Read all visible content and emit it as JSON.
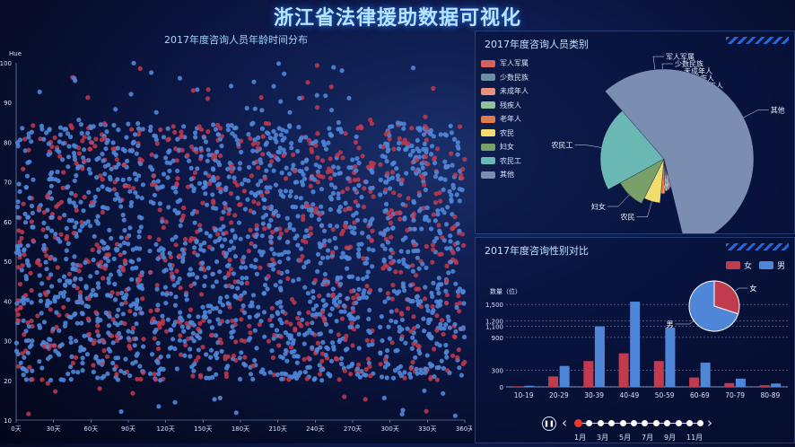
{
  "title": "浙江省法律援助数据可视化",
  "colors": {
    "female": "#c23a4d",
    "male": "#4f86d8"
  },
  "scatter": {
    "title": "2017年度咨询人员年龄时间分布",
    "yname": "Hue",
    "yticks": [
      "10",
      "20",
      "30",
      "40",
      "50",
      "60",
      "70",
      "80",
      "90",
      "100"
    ],
    "xticks": [
      "0天",
      "30天",
      "60天",
      "90天",
      "120天",
      "150天",
      "180天",
      "210天",
      "240天",
      "270天",
      "300天",
      "330天",
      "360天"
    ]
  },
  "categories": {
    "title": "2017年度咨询人员类别",
    "items": [
      {
        "label": "军人军属",
        "color": "#d95f5f"
      },
      {
        "label": "少数民族",
        "color": "#6b8fa8"
      },
      {
        "label": "未成年人",
        "color": "#e8927c"
      },
      {
        "label": "残疾人",
        "color": "#8fc49b"
      },
      {
        "label": "老年人",
        "color": "#e07b4a"
      },
      {
        "label": "农民",
        "color": "#f1dd6d"
      },
      {
        "label": "妇女",
        "color": "#7aa06a"
      },
      {
        "label": "农民工",
        "color": "#6ab8b4"
      },
      {
        "label": "其他",
        "color": "#7b8db0"
      }
    ],
    "chart_data": {
      "type": "pie",
      "labels": [
        "军人军属",
        "少数民族",
        "未成年人",
        "残疾人",
        "老年人",
        "农民",
        "妇女",
        "农民工",
        "其他"
      ],
      "values": [
        0.4,
        0.6,
        0.8,
        1,
        1.6,
        5,
        8,
        18,
        48
      ]
    }
  },
  "gender": {
    "title": "2017年度咨询性别对比",
    "legend": [
      "女",
      "男"
    ],
    "yname": "数量（位）",
    "yticks": [
      "0",
      "300",
      "900",
      "1,100",
      "1,200",
      "1,500"
    ],
    "pie_labels": {
      "female": "女",
      "male": "男"
    },
    "chart_data": {
      "type": "bar",
      "categories": [
        "10-19",
        "20-29",
        "30-39",
        "40-49",
        "50-59",
        "60-69",
        "70-79",
        "80-89"
      ],
      "series": [
        {
          "name": "女",
          "values": [
            10,
            190,
            470,
            610,
            470,
            170,
            70,
            30
          ]
        },
        {
          "name": "男",
          "values": [
            20,
            380,
            1100,
            1550,
            1080,
            440,
            150,
            60
          ]
        }
      ],
      "ylim": [
        0,
        1600
      ]
    },
    "pie_data": {
      "type": "pie",
      "labels": [
        "女",
        "男"
      ],
      "values": [
        30,
        70
      ]
    }
  },
  "timeline": {
    "play_icon": "pause-icon",
    "months": [
      "1月",
      "3月",
      "5月",
      "7月",
      "9月",
      "11月"
    ]
  }
}
